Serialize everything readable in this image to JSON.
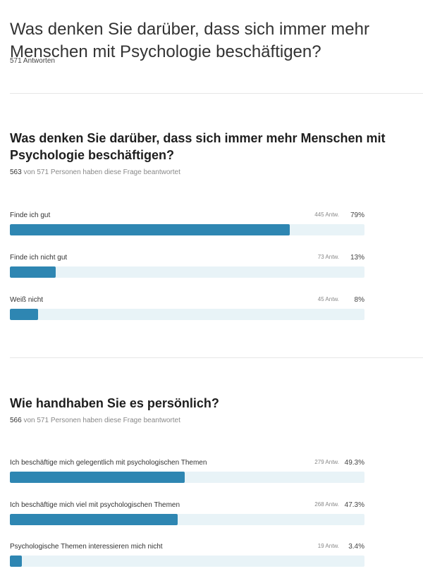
{
  "survey": {
    "title": "Was denken Sie darüber, dass sich immer mehr Menschen mit Psychologie beschäftigen?",
    "total_answers": "571 Antworten"
  },
  "questions": [
    {
      "title": "Was denken Sie darüber, dass sich immer mehr Menschen mit Psychologie beschäftigen?",
      "answered_count": "563",
      "answered_suffix": " von 571 Personen haben diese Frage beantwortet",
      "answers": [
        {
          "label": "Finde ich gut",
          "count": "445 Antw.",
          "percent": "79%",
          "fraction": 0.79
        },
        {
          "label": "Finde ich nicht gut",
          "count": "73 Antw.",
          "percent": "13%",
          "fraction": 0.13
        },
        {
          "label": "Weiß nicht",
          "count": "45 Antw.",
          "percent": "8%",
          "fraction": 0.08
        }
      ]
    },
    {
      "title": "Wie handhaben Sie es persönlich?",
      "answered_count": "566",
      "answered_suffix": " von 571 Personen haben diese Frage beantwortet",
      "answers": [
        {
          "label": "Ich beschäftige mich gelegentlich mit psychologischen Themen",
          "count": "279 Antw.",
          "percent": "49.3%",
          "fraction": 0.493
        },
        {
          "label": "Ich beschäftige mich viel mit psychologischen Themen",
          "count": "268 Antw.",
          "percent": "47.3%",
          "fraction": 0.473
        },
        {
          "label": "Psychologische Themen interessieren mich nicht",
          "count": "19 Antw.",
          "percent": "3.4%",
          "fraction": 0.034
        }
      ]
    }
  ],
  "colors": {
    "bar_fill": "#2e86b2",
    "bar_track": "#e8f3f7"
  }
}
